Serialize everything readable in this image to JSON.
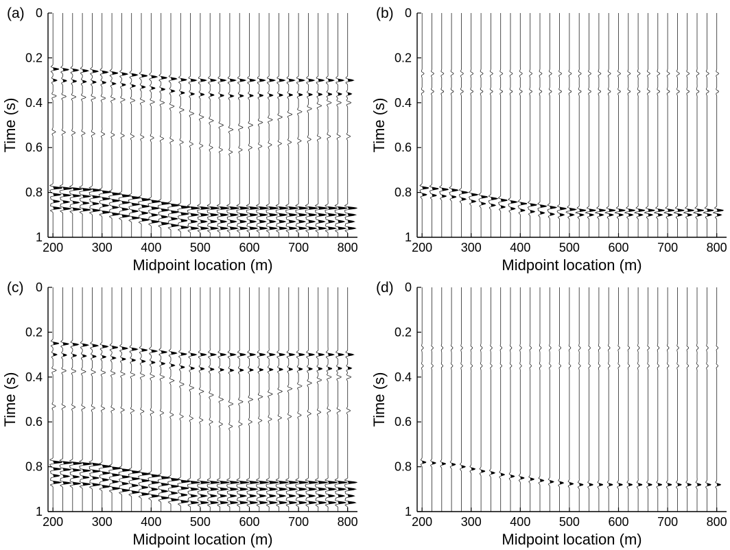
{
  "figure": {
    "panels": [
      {
        "label": "(a)",
        "content": "modelled data: primary and multiple reflection events"
      },
      {
        "label": "(b)",
        "content": "primary reflection events"
      },
      {
        "label": "(c)",
        "content": "multiple reflection events"
      },
      {
        "label": "(d)",
        "content": "residual reflection events"
      }
    ]
  },
  "chart_data": [
    {
      "type": "seismic-wiggle",
      "panel": "(a)",
      "xlabel": "Midpoint location (m)",
      "ylabel": "Time (s)",
      "xlim": [
        190,
        820
      ],
      "ylim": [
        0,
        1
      ],
      "y_inverted": true,
      "xticks": [
        200,
        300,
        400,
        500,
        600,
        700,
        800
      ],
      "xtick_labels": [
        "200",
        "300",
        "400",
        "500",
        "600",
        "700",
        "800"
      ],
      "yticks": [
        0,
        0.2,
        0.4,
        0.6,
        0.8,
        1
      ],
      "ytick_labels": [
        "0",
        "0.2",
        "0.4",
        "0.6",
        "0.8",
        "1"
      ],
      "trace_x": [
        200,
        220,
        240,
        260,
        280,
        300,
        320,
        340,
        360,
        380,
        400,
        420,
        440,
        460,
        480,
        500,
        520,
        540,
        560,
        580,
        600,
        620,
        640,
        660,
        680,
        700,
        720,
        740,
        760,
        780,
        800
      ],
      "events": [
        {
          "x": [
            200,
            280,
            380,
            470,
            520,
            820
          ],
          "t": [
            0.25,
            0.26,
            0.28,
            0.3,
            0.3,
            0.3
          ],
          "amp": 9,
          "style": "bold"
        },
        {
          "x": [
            200,
            300,
            420,
            470,
            560,
            820
          ],
          "t": [
            0.3,
            0.31,
            0.34,
            0.36,
            0.37,
            0.36
          ],
          "amp": 6,
          "style": "bold"
        },
        {
          "x": [
            200,
            300,
            420,
            520,
            560,
            600,
            700,
            760
          ],
          "t": [
            0.37,
            0.38,
            0.4,
            0.48,
            0.52,
            0.5,
            0.44,
            0.4
          ],
          "amp": 5,
          "style": "light"
        },
        {
          "x": [
            200,
            300,
            420,
            520,
            560,
            600,
            700,
            760
          ],
          "t": [
            0.53,
            0.54,
            0.56,
            0.6,
            0.62,
            0.6,
            0.57,
            0.55
          ],
          "amp": 4,
          "style": "light"
        },
        {
          "x": [
            200,
            280,
            470,
            820
          ],
          "t": [
            0.78,
            0.79,
            0.87,
            0.87
          ],
          "amp": 14,
          "style": "heavy"
        },
        {
          "x": [
            200,
            280,
            470,
            820
          ],
          "t": [
            0.81,
            0.82,
            0.9,
            0.9
          ],
          "amp": 12,
          "style": "heavy"
        },
        {
          "x": [
            200,
            280,
            470,
            820
          ],
          "t": [
            0.84,
            0.85,
            0.93,
            0.93
          ],
          "amp": 10,
          "style": "heavy"
        },
        {
          "x": [
            200,
            280,
            470,
            820
          ],
          "t": [
            0.87,
            0.88,
            0.96,
            0.96
          ],
          "amp": 12,
          "style": "heavy"
        }
      ]
    },
    {
      "type": "seismic-wiggle",
      "panel": "(b)",
      "xlabel": "Midpoint location (m)",
      "ylabel": "Time (s)",
      "xlim": [
        190,
        820
      ],
      "ylim": [
        0,
        1
      ],
      "y_inverted": true,
      "xticks": [
        200,
        300,
        400,
        500,
        600,
        700,
        800
      ],
      "xtick_labels": [
        "200",
        "300",
        "400",
        "500",
        "600",
        "700",
        "800"
      ],
      "yticks": [
        0,
        0.2,
        0.4,
        0.6,
        0.8,
        1
      ],
      "ytick_labels": [
        "0",
        "0.2",
        "0.4",
        "0.6",
        "0.8",
        "1"
      ],
      "trace_x": [
        200,
        220,
        240,
        260,
        280,
        300,
        320,
        340,
        360,
        380,
        400,
        420,
        440,
        460,
        480,
        500,
        520,
        540,
        560,
        580,
        600,
        620,
        640,
        660,
        680,
        700,
        720,
        740,
        760,
        780,
        800
      ],
      "events": [
        {
          "x": [
            200,
            260,
            320,
            400,
            470,
            520,
            820
          ],
          "t": [
            0.78,
            0.79,
            0.82,
            0.85,
            0.87,
            0.88,
            0.88
          ],
          "amp": 10,
          "style": "heavy"
        },
        {
          "x": [
            200,
            260,
            320,
            400,
            470,
            520,
            820
          ],
          "t": [
            0.81,
            0.82,
            0.85,
            0.88,
            0.9,
            0.9,
            0.9
          ],
          "amp": 7,
          "style": "bold"
        },
        {
          "x": [
            200,
            820
          ],
          "t": [
            0.27,
            0.27
          ],
          "amp": 3,
          "style": "light"
        },
        {
          "x": [
            200,
            820
          ],
          "t": [
            0.35,
            0.35
          ],
          "amp": 3,
          "style": "light"
        }
      ]
    },
    {
      "type": "seismic-wiggle",
      "panel": "(c)",
      "xlabel": "Midpoint location (m)",
      "ylabel": "Time (s)",
      "xlim": [
        190,
        820
      ],
      "ylim": [
        0,
        1
      ],
      "y_inverted": true,
      "xticks": [
        200,
        300,
        400,
        500,
        600,
        700,
        800
      ],
      "xtick_labels": [
        "200",
        "300",
        "400",
        "500",
        "600",
        "700",
        "800"
      ],
      "yticks": [
        0,
        0.2,
        0.4,
        0.6,
        0.8,
        1
      ],
      "ytick_labels": [
        "0",
        "0.2",
        "0.4",
        "0.6",
        "0.8",
        "1"
      ],
      "trace_x": [
        200,
        220,
        240,
        260,
        280,
        300,
        320,
        340,
        360,
        380,
        400,
        420,
        440,
        460,
        480,
        500,
        520,
        540,
        560,
        580,
        600,
        620,
        640,
        660,
        680,
        700,
        720,
        740,
        760,
        780,
        800
      ],
      "events": [
        {
          "x": [
            200,
            280,
            380,
            470,
            520,
            820
          ],
          "t": [
            0.25,
            0.26,
            0.28,
            0.3,
            0.3,
            0.3
          ],
          "amp": 9,
          "style": "bold"
        },
        {
          "x": [
            200,
            300,
            420,
            470,
            560,
            820
          ],
          "t": [
            0.3,
            0.31,
            0.34,
            0.36,
            0.37,
            0.36
          ],
          "amp": 6,
          "style": "bold"
        },
        {
          "x": [
            200,
            300,
            420,
            520,
            560,
            600,
            700,
            760
          ],
          "t": [
            0.37,
            0.38,
            0.4,
            0.48,
            0.52,
            0.5,
            0.44,
            0.4
          ],
          "amp": 5,
          "style": "light"
        },
        {
          "x": [
            200,
            300,
            420,
            520,
            560,
            600,
            700,
            760
          ],
          "t": [
            0.53,
            0.54,
            0.56,
            0.6,
            0.62,
            0.6,
            0.57,
            0.55
          ],
          "amp": 4,
          "style": "light"
        },
        {
          "x": [
            200,
            280,
            470,
            820
          ],
          "t": [
            0.78,
            0.79,
            0.87,
            0.87
          ],
          "amp": 14,
          "style": "heavy"
        },
        {
          "x": [
            200,
            280,
            470,
            820
          ],
          "t": [
            0.81,
            0.82,
            0.9,
            0.9
          ],
          "amp": 12,
          "style": "heavy"
        },
        {
          "x": [
            200,
            280,
            470,
            820
          ],
          "t": [
            0.84,
            0.85,
            0.93,
            0.93
          ],
          "amp": 10,
          "style": "heavy"
        },
        {
          "x": [
            200,
            280,
            470,
            820
          ],
          "t": [
            0.87,
            0.88,
            0.96,
            0.96
          ],
          "amp": 12,
          "style": "heavy"
        }
      ]
    },
    {
      "type": "seismic-wiggle",
      "panel": "(d)",
      "xlabel": "Midpoint location (m)",
      "ylabel": "Time (s)",
      "xlim": [
        190,
        820
      ],
      "ylim": [
        0,
        1
      ],
      "y_inverted": true,
      "xticks": [
        200,
        300,
        400,
        500,
        600,
        700,
        800
      ],
      "xtick_labels": [
        "200",
        "300",
        "400",
        "500",
        "600",
        "700",
        "800"
      ],
      "yticks": [
        0,
        0.2,
        0.4,
        0.6,
        0.8,
        1
      ],
      "ytick_labels": [
        "0",
        "0.2",
        "0.4",
        "0.6",
        "0.8",
        "1"
      ],
      "trace_x": [
        200,
        220,
        240,
        260,
        280,
        300,
        320,
        340,
        360,
        380,
        400,
        420,
        440,
        460,
        480,
        500,
        520,
        540,
        560,
        580,
        600,
        620,
        640,
        660,
        680,
        700,
        720,
        740,
        760,
        780,
        800
      ],
      "events": [
        {
          "x": [
            200,
            260,
            320,
            400,
            470,
            520,
            820
          ],
          "t": [
            0.78,
            0.79,
            0.82,
            0.85,
            0.87,
            0.88,
            0.88
          ],
          "amp": 6,
          "style": "bold"
        },
        {
          "x": [
            200,
            820
          ],
          "t": [
            0.27,
            0.27
          ],
          "amp": 2,
          "style": "light"
        },
        {
          "x": [
            200,
            820
          ],
          "t": [
            0.35,
            0.35
          ],
          "amp": 2,
          "style": "light"
        }
      ]
    }
  ]
}
